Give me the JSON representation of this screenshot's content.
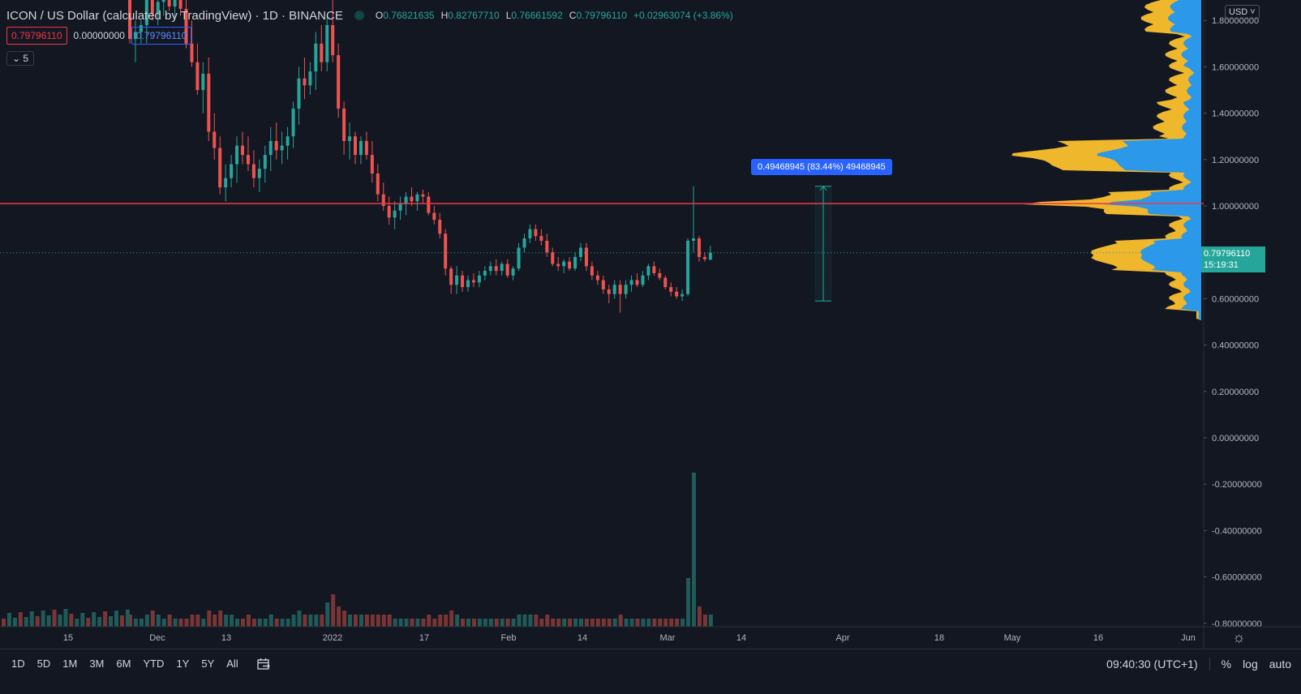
{
  "header": {
    "title": "ICON / US Dollar (calculated by TradingView) · 1D · BINANCE",
    "ohlc": {
      "o_label": "O",
      "o": "0.76821635",
      "h_label": "H",
      "h": "0.82767710",
      "l_label": "L",
      "l": "0.76661592",
      "c_label": "C",
      "c": "0.79796110",
      "change": "+0.02963074 (+3.86%)"
    },
    "bid": "0.79796110",
    "spread": "0.00000000",
    "ask": "0.79796110",
    "indicator_count": "5"
  },
  "currency": "USD",
  "measure_label": "0.49468945 (83.44%) 49468945",
  "last_price": {
    "value": "0.79796110",
    "countdown": "15:19:31"
  },
  "bottom": {
    "ranges": [
      "1D",
      "5D",
      "1M",
      "3M",
      "6M",
      "YTD",
      "1Y",
      "5Y",
      "All"
    ],
    "time": "09:40:30 (UTC+1)",
    "percent": "%",
    "log": "log",
    "auto": "auto"
  },
  "colors": {
    "up": "#26a69a",
    "down": "#ef5350",
    "hline": "#f23645",
    "vp_up": "#2196f3",
    "vp_total": "#fbc02d"
  },
  "chart_data": {
    "type": "candlestick",
    "y_ticks": [
      "1.80000000",
      "1.60000000",
      "1.40000000",
      "1.20000000",
      "1.00000000",
      "0.80000000",
      "0.60000000",
      "0.40000000",
      "0.20000000",
      "0.00000000",
      "-0.20000000",
      "-0.40000000",
      "-0.60000000",
      "-0.80000000"
    ],
    "x_ticks": [
      "15",
      "Dec",
      "13",
      "2022",
      "17",
      "Feb",
      "14",
      "Mar",
      "14",
      "Apr",
      "18",
      "May",
      "16",
      "Jun"
    ],
    "ylim": [
      -0.8,
      1.85
    ],
    "horizontal_line": 1.01,
    "measure": {
      "from": 0.59,
      "to": 1.085
    },
    "last_close": 0.7979611,
    "candles": [
      [
        1.95,
        2.0,
        1.7,
        1.72,
        3
      ],
      [
        1.72,
        1.8,
        1.62,
        1.75,
        2
      ],
      [
        1.75,
        1.8,
        1.7,
        1.78,
        2
      ],
      [
        1.78,
        1.98,
        1.7,
        1.92,
        3
      ],
      [
        1.92,
        1.98,
        1.8,
        1.83,
        4
      ],
      [
        1.83,
        1.92,
        1.78,
        1.88,
        3
      ],
      [
        1.88,
        1.95,
        1.82,
        1.93,
        2
      ],
      [
        1.93,
        1.98,
        1.84,
        1.86,
        3
      ],
      [
        1.86,
        1.95,
        1.8,
        1.9,
        2
      ],
      [
        1.9,
        1.96,
        1.82,
        1.85,
        2
      ],
      [
        1.85,
        1.95,
        1.68,
        1.7,
        2
      ],
      [
        1.7,
        1.8,
        1.6,
        1.62,
        3
      ],
      [
        1.62,
        1.7,
        1.48,
        1.5,
        3
      ],
      [
        1.5,
        1.62,
        1.4,
        1.57,
        2
      ],
      [
        1.57,
        1.64,
        1.28,
        1.32,
        4
      ],
      [
        1.32,
        1.4,
        1.2,
        1.25,
        3
      ],
      [
        1.25,
        1.3,
        1.05,
        1.08,
        4
      ],
      [
        1.08,
        1.18,
        1.02,
        1.12,
        3
      ],
      [
        1.12,
        1.22,
        1.08,
        1.18,
        3
      ],
      [
        1.18,
        1.3,
        1.1,
        1.26,
        2
      ],
      [
        1.26,
        1.32,
        1.18,
        1.22,
        2
      ],
      [
        1.22,
        1.3,
        1.15,
        1.18,
        3
      ],
      [
        1.18,
        1.24,
        1.08,
        1.12,
        2
      ],
      [
        1.12,
        1.2,
        1.06,
        1.16,
        2
      ],
      [
        1.16,
        1.26,
        1.1,
        1.22,
        2
      ],
      [
        1.22,
        1.34,
        1.15,
        1.28,
        3
      ],
      [
        1.28,
        1.36,
        1.2,
        1.24,
        2
      ],
      [
        1.24,
        1.32,
        1.18,
        1.26,
        2
      ],
      [
        1.26,
        1.34,
        1.2,
        1.3,
        2
      ],
      [
        1.3,
        1.45,
        1.25,
        1.42,
        3
      ],
      [
        1.42,
        1.6,
        1.35,
        1.55,
        4
      ],
      [
        1.55,
        1.64,
        1.46,
        1.52,
        3
      ],
      [
        1.52,
        1.62,
        1.48,
        1.58,
        3
      ],
      [
        1.58,
        1.75,
        1.5,
        1.7,
        3
      ],
      [
        1.7,
        1.78,
        1.58,
        1.62,
        3
      ],
      [
        1.62,
        1.82,
        1.58,
        1.78,
        6
      ],
      [
        1.78,
        1.98,
        1.62,
        1.65,
        8
      ],
      [
        1.65,
        1.7,
        1.38,
        1.42,
        5
      ],
      [
        1.42,
        1.45,
        1.22,
        1.28,
        4
      ],
      [
        1.28,
        1.36,
        1.2,
        1.3,
        3
      ],
      [
        1.3,
        1.32,
        1.18,
        1.22,
        3
      ],
      [
        1.22,
        1.3,
        1.18,
        1.28,
        3
      ],
      [
        1.28,
        1.32,
        1.2,
        1.22,
        3
      ],
      [
        1.22,
        1.28,
        1.1,
        1.14,
        3
      ],
      [
        1.14,
        1.18,
        1.02,
        1.05,
        3
      ],
      [
        1.05,
        1.1,
        0.98,
        1.0,
        3
      ],
      [
        1.0,
        1.04,
        0.92,
        0.95,
        3
      ],
      [
        0.95,
        1.02,
        0.9,
        0.98,
        2
      ],
      [
        0.98,
        1.04,
        0.94,
        1.01,
        2
      ],
      [
        1.01,
        1.06,
        0.96,
        1.04,
        2
      ],
      [
        1.04,
        1.08,
        1.0,
        1.02,
        2
      ],
      [
        1.02,
        1.06,
        0.98,
        1.05,
        2
      ],
      [
        1.05,
        1.07,
        1.01,
        1.04,
        2
      ],
      [
        1.04,
        1.06,
        0.96,
        0.97,
        3
      ],
      [
        0.97,
        1.0,
        0.92,
        0.94,
        2
      ],
      [
        0.94,
        0.97,
        0.86,
        0.88,
        3
      ],
      [
        0.88,
        0.9,
        0.7,
        0.73,
        3
      ],
      [
        0.73,
        0.74,
        0.62,
        0.66,
        4
      ],
      [
        0.66,
        0.74,
        0.62,
        0.7,
        3
      ],
      [
        0.7,
        0.72,
        0.63,
        0.65,
        2
      ],
      [
        0.65,
        0.7,
        0.63,
        0.68,
        2
      ],
      [
        0.68,
        0.71,
        0.65,
        0.67,
        2
      ],
      [
        0.67,
        0.72,
        0.65,
        0.7,
        2
      ],
      [
        0.7,
        0.74,
        0.68,
        0.72,
        2
      ],
      [
        0.72,
        0.76,
        0.7,
        0.74,
        2
      ],
      [
        0.74,
        0.77,
        0.7,
        0.72,
        2
      ],
      [
        0.72,
        0.76,
        0.7,
        0.75,
        2
      ],
      [
        0.75,
        0.77,
        0.69,
        0.7,
        2
      ],
      [
        0.7,
        0.74,
        0.68,
        0.73,
        2
      ],
      [
        0.73,
        0.84,
        0.72,
        0.82,
        3
      ],
      [
        0.82,
        0.88,
        0.8,
        0.86,
        3
      ],
      [
        0.86,
        0.92,
        0.84,
        0.9,
        3
      ],
      [
        0.9,
        0.92,
        0.85,
        0.87,
        3
      ],
      [
        0.87,
        0.9,
        0.83,
        0.85,
        2
      ],
      [
        0.85,
        0.88,
        0.78,
        0.8,
        3
      ],
      [
        0.8,
        0.82,
        0.74,
        0.75,
        2
      ],
      [
        0.75,
        0.78,
        0.72,
        0.74,
        2
      ],
      [
        0.74,
        0.77,
        0.71,
        0.76,
        2
      ],
      [
        0.76,
        0.78,
        0.72,
        0.73,
        2
      ],
      [
        0.73,
        0.8,
        0.72,
        0.78,
        2
      ],
      [
        0.78,
        0.84,
        0.76,
        0.82,
        2
      ],
      [
        0.82,
        0.84,
        0.72,
        0.74,
        2
      ],
      [
        0.74,
        0.76,
        0.68,
        0.7,
        2
      ],
      [
        0.7,
        0.72,
        0.66,
        0.68,
        2
      ],
      [
        0.68,
        0.7,
        0.62,
        0.64,
        2
      ],
      [
        0.64,
        0.66,
        0.58,
        0.62,
        2
      ],
      [
        0.62,
        0.68,
        0.6,
        0.66,
        2
      ],
      [
        0.66,
        0.68,
        0.54,
        0.62,
        3
      ],
      [
        0.62,
        0.68,
        0.6,
        0.66,
        2
      ],
      [
        0.66,
        0.7,
        0.63,
        0.68,
        2
      ],
      [
        0.68,
        0.71,
        0.65,
        0.66,
        2
      ],
      [
        0.66,
        0.72,
        0.65,
        0.7,
        2
      ],
      [
        0.7,
        0.75,
        0.68,
        0.74,
        2
      ],
      [
        0.74,
        0.76,
        0.7,
        0.71,
        2
      ],
      [
        0.71,
        0.73,
        0.68,
        0.69,
        2
      ],
      [
        0.69,
        0.7,
        0.64,
        0.65,
        2
      ],
      [
        0.65,
        0.67,
        0.61,
        0.63,
        2
      ],
      [
        0.63,
        0.65,
        0.6,
        0.61,
        2
      ],
      [
        0.61,
        0.64,
        0.59,
        0.62,
        2
      ],
      [
        0.62,
        0.86,
        0.61,
        0.85,
        12
      ],
      [
        0.85,
        1.085,
        0.8,
        0.86,
        38
      ],
      [
        0.86,
        0.87,
        0.76,
        0.78,
        5
      ],
      [
        0.78,
        0.8,
        0.76,
        0.77,
        3
      ],
      [
        0.768,
        0.828,
        0.767,
        0.798,
        3
      ]
    ]
  }
}
